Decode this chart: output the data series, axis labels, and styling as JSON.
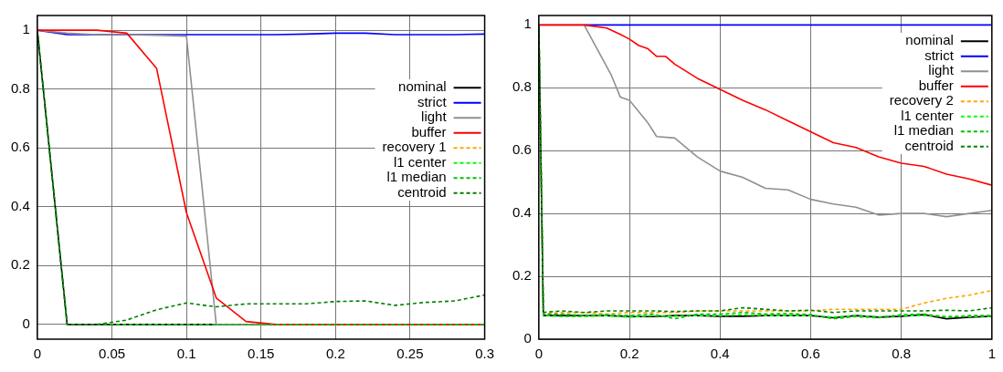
{
  "chart_data": [
    {
      "type": "line",
      "x": [
        0,
        0.02,
        0.04,
        0.06,
        0.08,
        0.1,
        0.12,
        0.14,
        0.16,
        0.18,
        0.2,
        0.22,
        0.24,
        0.26,
        0.28,
        0.3
      ],
      "xlim": [
        0,
        0.3
      ],
      "xticks": [
        0,
        0.05,
        0.1,
        0.15,
        0.2,
        0.25,
        0.3
      ],
      "ylim": [
        -0.05,
        1.05
      ],
      "yticks": [
        0,
        0.2,
        0.4,
        0.6,
        0.8,
        1
      ],
      "grid": true,
      "legend": "right",
      "marker": "none",
      "series": [
        {
          "name": "nominal",
          "color": "#000000",
          "line_style": "solid",
          "values": [
            1,
            0,
            0,
            0,
            0,
            0,
            0,
            0,
            0,
            0,
            0,
            0,
            0,
            0,
            0,
            0
          ]
        },
        {
          "name": "strict",
          "color": "#0000ff",
          "line_style": "solid",
          "values": [
            1,
            0.985,
            0.985,
            0.985,
            0.985,
            0.985,
            0.985,
            0.985,
            0.985,
            0.987,
            0.99,
            0.99,
            0.985,
            0.985,
            0.985,
            0.987
          ]
        },
        {
          "name": "light",
          "color": "#909090",
          "line_style": "solid",
          "values": [
            1,
            0.99,
            0.985,
            0.985,
            0.983,
            0.98,
            0,
            0,
            0,
            0,
            0,
            0,
            0,
            0,
            0,
            0
          ]
        },
        {
          "name": "buffer",
          "color": "#ff0000",
          "line_style": "solid",
          "values": [
            1,
            1,
            1,
            0.99,
            0.87,
            0.38,
            0.09,
            0.01,
            0,
            0,
            0,
            0,
            0,
            0,
            0,
            0
          ]
        },
        {
          "name": "recovery 1",
          "color": "#ffa500",
          "line_style": "dashed",
          "values": [
            null,
            null,
            null,
            null,
            null,
            null,
            null,
            null,
            null,
            null,
            null,
            null,
            null,
            null,
            null,
            null
          ]
        },
        {
          "name": "l1 center",
          "color": "#00ff00",
          "line_style": "dashed",
          "values": [
            null,
            null,
            null,
            null,
            null,
            null,
            null,
            null,
            null,
            null,
            null,
            null,
            null,
            null,
            null,
            null
          ]
        },
        {
          "name": "l1 median",
          "color": "#00c000",
          "line_style": "dashed",
          "values": [
            1,
            0,
            0,
            0,
            0,
            0,
            0,
            0,
            0,
            0,
            0,
            0,
            0,
            0,
            0,
            0
          ]
        },
        {
          "name": "centroid",
          "color": "#008000",
          "line_style": "dashed",
          "values": [
            1,
            0,
            0,
            0.015,
            0.05,
            0.073,
            0.06,
            0.07,
            0.07,
            0.07,
            0.078,
            0.08,
            0.065,
            0.075,
            0.08,
            0.1
          ]
        }
      ]
    },
    {
      "type": "line",
      "x": [
        0,
        0.01,
        0.05,
        0.1,
        0.15,
        0.2,
        0.25,
        0.3,
        0.35,
        0.4,
        0.45,
        0.5,
        0.55,
        0.6,
        0.65,
        0.7,
        0.75,
        0.8,
        0.85,
        0.9,
        0.95,
        1
      ],
      "xlim": [
        0,
        1
      ],
      "xticks": [
        0,
        0.2,
        0.4,
        0.6,
        0.8,
        1
      ],
      "ylim": [
        0,
        1.03
      ],
      "yticks": [
        0,
        0.2,
        0.4,
        0.6,
        0.8,
        1
      ],
      "grid": true,
      "legend": "top right",
      "marker": "none",
      "series": [
        {
          "name": "nominal",
          "color": "#000000",
          "line_style": "solid",
          "values": [
            1,
            0.075,
            0.075,
            0.075,
            0.075,
            0.072,
            0.072,
            0.075,
            0.075,
            0.073,
            0.073,
            0.075,
            0.075,
            0.075,
            0.068,
            0.075,
            0.07,
            0.073,
            0.078,
            0.065,
            0.07,
            0.073
          ]
        },
        {
          "name": "strict",
          "color": "#0000ff",
          "line_style": "solid",
          "values": [
            null,
            null,
            null,
            1,
            1,
            1,
            1,
            1,
            1,
            1,
            1,
            1,
            1,
            1,
            1,
            1,
            1,
            1,
            1,
            1,
            1,
            1
          ]
        },
        {
          "name": "light",
          "color": "#909090",
          "line_style": "solid",
          "x": [
            0,
            0.1,
            0.16,
            0.18,
            0.2,
            0.24,
            0.26,
            0.3,
            0.35,
            0.4,
            0.45,
            0.5,
            0.55,
            0.6,
            0.65,
            0.7,
            0.75,
            0.8,
            0.85,
            0.9,
            0.95,
            1
          ],
          "values": [
            1,
            1,
            0.84,
            0.77,
            0.76,
            0.69,
            0.645,
            0.64,
            0.58,
            0.535,
            0.515,
            0.48,
            0.475,
            0.445,
            0.43,
            0.42,
            0.395,
            0.4,
            0.4,
            0.39,
            0.4,
            0.41
          ]
        },
        {
          "name": "buffer",
          "color": "#ff0000",
          "line_style": "solid",
          "x": [
            0,
            0.1,
            0.15,
            0.18,
            0.2,
            0.22,
            0.24,
            0.26,
            0.28,
            0.3,
            0.35,
            0.4,
            0.45,
            0.5,
            0.55,
            0.6,
            0.65,
            0.7,
            0.75,
            0.8,
            0.85,
            0.9,
            0.95,
            1
          ],
          "values": [
            1,
            1,
            0.99,
            0.97,
            0.955,
            0.935,
            0.925,
            0.9,
            0.9,
            0.875,
            0.83,
            0.795,
            0.76,
            0.73,
            0.695,
            0.66,
            0.625,
            0.61,
            0.58,
            0.56,
            0.55,
            0.525,
            0.51,
            0.49
          ]
        },
        {
          "name": "recovery 2",
          "color": "#ffa500",
          "line_style": "dashed",
          "values": [
            1,
            0.08,
            0.085,
            0.085,
            0.08,
            0.085,
            0.085,
            0.085,
            0.09,
            0.09,
            0.09,
            0.09,
            0.09,
            0.09,
            0.095,
            0.095,
            0.095,
            0.095,
            0.115,
            0.13,
            0.14,
            0.155
          ]
        },
        {
          "name": "l1 center",
          "color": "#00ff00",
          "line_style": "dashed",
          "values": [
            1,
            0.075,
            0.072,
            0.072,
            0.075,
            0.07,
            0.075,
            0.073,
            0.075,
            0.075,
            0.078,
            0.075,
            0.075,
            0.075,
            0.07,
            0.075,
            0.07,
            0.075,
            0.075,
            0.073,
            0.072,
            0.073
          ]
        },
        {
          "name": "l1 median",
          "color": "#00c000",
          "line_style": "dashed",
          "values": [
            1,
            0.08,
            0.08,
            0.075,
            0.078,
            0.075,
            0.08,
            0.065,
            0.08,
            0.08,
            0.085,
            0.08,
            0.082,
            0.078,
            0.065,
            0.072,
            0.068,
            0.078,
            0.08,
            0.07,
            0.075,
            0.075
          ]
        },
        {
          "name": "centroid",
          "color": "#008000",
          "line_style": "dashed",
          "values": [
            1,
            0.085,
            0.09,
            0.085,
            0.09,
            0.09,
            0.09,
            0.088,
            0.09,
            0.09,
            0.1,
            0.095,
            0.09,
            0.092,
            0.085,
            0.09,
            0.09,
            0.09,
            0.09,
            0.092,
            0.09,
            0.1
          ]
        }
      ]
    }
  ]
}
